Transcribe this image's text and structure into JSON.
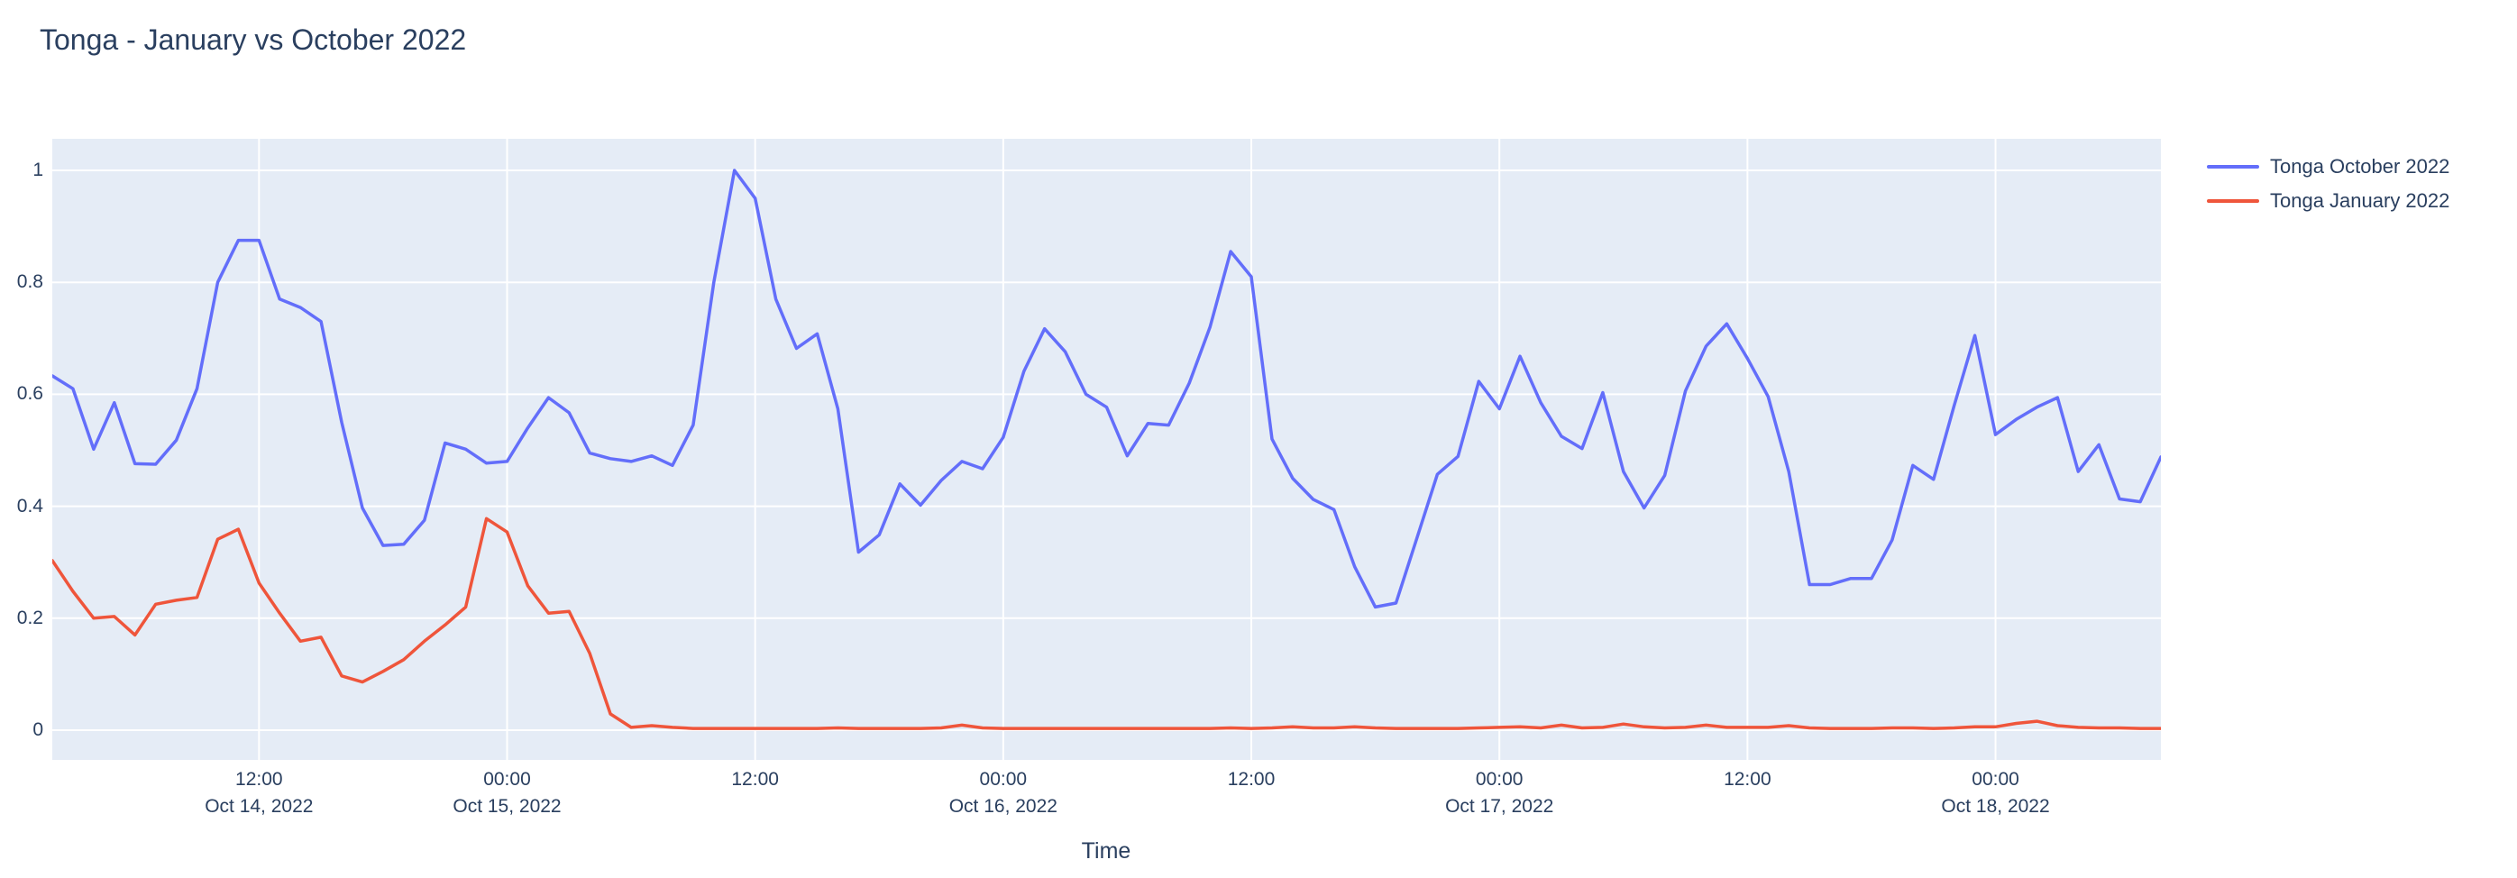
{
  "page": {
    "background": "#ffffff"
  },
  "chart_data": {
    "type": "line",
    "title": "Tonga - January vs October 2022",
    "xlabel": "Time",
    "ylabel": "",
    "plot_bg": "#E5ECF6",
    "grid_color": "#FFFFFF",
    "font_color": "#2A3F5F",
    "grid": true,
    "legend_position": "top-right-outside",
    "x_start": "2022-10-14 02:00",
    "x_end": "2022-10-18 08:00",
    "interval_hours": 1,
    "total_hours": 102,
    "ylim": [
      -0.053,
      1.056
    ],
    "y_ticks": [
      0,
      0.2,
      0.4,
      0.6,
      0.8,
      1
    ],
    "x_ticks": [
      {
        "t": 10,
        "time": "12:00",
        "date": "Oct 14, 2022"
      },
      {
        "t": 22,
        "time": "00:00",
        "date": "Oct 15, 2022"
      },
      {
        "t": 34,
        "time": "12:00",
        "date": ""
      },
      {
        "t": 46,
        "time": "00:00",
        "date": "Oct 16, 2022"
      },
      {
        "t": 58,
        "time": "12:00",
        "date": ""
      },
      {
        "t": 70,
        "time": "00:00",
        "date": "Oct 17, 2022"
      },
      {
        "t": 82,
        "time": "12:00",
        "date": ""
      },
      {
        "t": 94,
        "time": "00:00",
        "date": "Oct 18, 2022"
      }
    ],
    "series": [
      {
        "name": "Tonga October 2022",
        "color": "#636EFA",
        "values": [
          0.633,
          0.61,
          0.502,
          0.585,
          0.476,
          0.475,
          0.518,
          0.61,
          0.8,
          0.875,
          0.875,
          0.77,
          0.755,
          0.73,
          0.55,
          0.397,
          0.33,
          0.332,
          0.375,
          0.513,
          0.502,
          0.477,
          0.48,
          0.54,
          0.594,
          0.567,
          0.495,
          0.485,
          0.48,
          0.49,
          0.473,
          0.545,
          0.8,
          1.0,
          0.95,
          0.77,
          0.682,
          0.708,
          0.574,
          0.318,
          0.349,
          0.44,
          0.402,
          0.446,
          0.48,
          0.467,
          0.523,
          0.641,
          0.717,
          0.676,
          0.6,
          0.577,
          0.49,
          0.548,
          0.545,
          0.62,
          0.72,
          0.855,
          0.81,
          0.52,
          0.45,
          0.412,
          0.394,
          0.292,
          0.22,
          0.227,
          0.342,
          0.457,
          0.489,
          0.623,
          0.574,
          0.668,
          0.585,
          0.525,
          0.503,
          0.603,
          0.462,
          0.397,
          0.455,
          0.606,
          0.686,
          0.726,
          0.664,
          0.596,
          0.462,
          0.26,
          0.26,
          0.271,
          0.271,
          0.34,
          0.473,
          0.448,
          0.58,
          0.705,
          0.528,
          0.555,
          0.577,
          0.594,
          0.462,
          0.51,
          0.413,
          0.408,
          0.488
        ]
      },
      {
        "name": "Tonga January 2022",
        "color": "#EF553B",
        "values": [
          0.303,
          0.248,
          0.2,
          0.203,
          0.17,
          0.225,
          0.232,
          0.237,
          0.341,
          0.359,
          0.263,
          0.209,
          0.159,
          0.166,
          0.097,
          0.086,
          0.105,
          0.126,
          0.159,
          0.188,
          0.22,
          0.378,
          0.354,
          0.258,
          0.209,
          0.212,
          0.137,
          0.029,
          0.005,
          0.008,
          0.005,
          0.003,
          0.003,
          0.003,
          0.003,
          0.003,
          0.003,
          0.003,
          0.004,
          0.003,
          0.003,
          0.003,
          0.003,
          0.004,
          0.009,
          0.004,
          0.003,
          0.003,
          0.003,
          0.003,
          0.003,
          0.003,
          0.003,
          0.003,
          0.003,
          0.003,
          0.003,
          0.004,
          0.003,
          0.004,
          0.006,
          0.004,
          0.004,
          0.006,
          0.004,
          0.003,
          0.003,
          0.003,
          0.003,
          0.004,
          0.005,
          0.006,
          0.004,
          0.009,
          0.004,
          0.005,
          0.011,
          0.006,
          0.004,
          0.005,
          0.009,
          0.005,
          0.005,
          0.005,
          0.008,
          0.004,
          0.003,
          0.003,
          0.003,
          0.004,
          0.004,
          0.003,
          0.004,
          0.006,
          0.006,
          0.012,
          0.016,
          0.008,
          0.005,
          0.004,
          0.004,
          0.003,
          0.003
        ]
      }
    ]
  }
}
